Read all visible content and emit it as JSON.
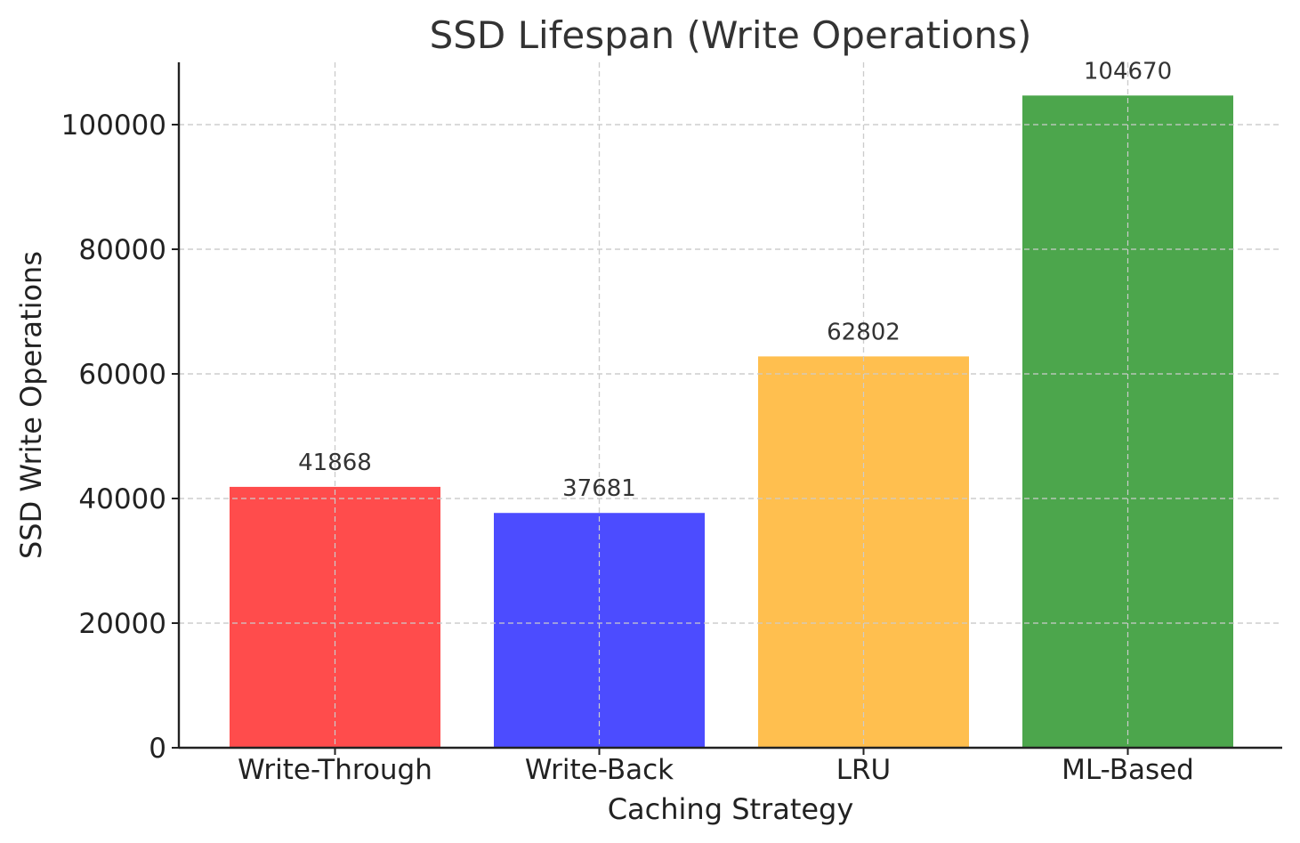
{
  "chart_data": {
    "type": "bar",
    "title": "SSD Lifespan (Write Operations)",
    "xlabel": "Caching Strategy",
    "ylabel": "SSD Write Operations",
    "categories": [
      "Write-Through",
      "Write-Back",
      "LRU",
      "ML-Based"
    ],
    "values": [
      41868,
      37681,
      62802,
      104670
    ],
    "colors": [
      "#ff4c4c",
      "#4c4cff",
      "#ffbf4f",
      "#4ca64c"
    ],
    "ylim": [
      0,
      110000
    ],
    "yticks": [
      0,
      20000,
      40000,
      60000,
      80000,
      100000
    ],
    "grid": true,
    "data_labels": [
      "41868",
      "37681",
      "62802",
      "104670"
    ]
  }
}
